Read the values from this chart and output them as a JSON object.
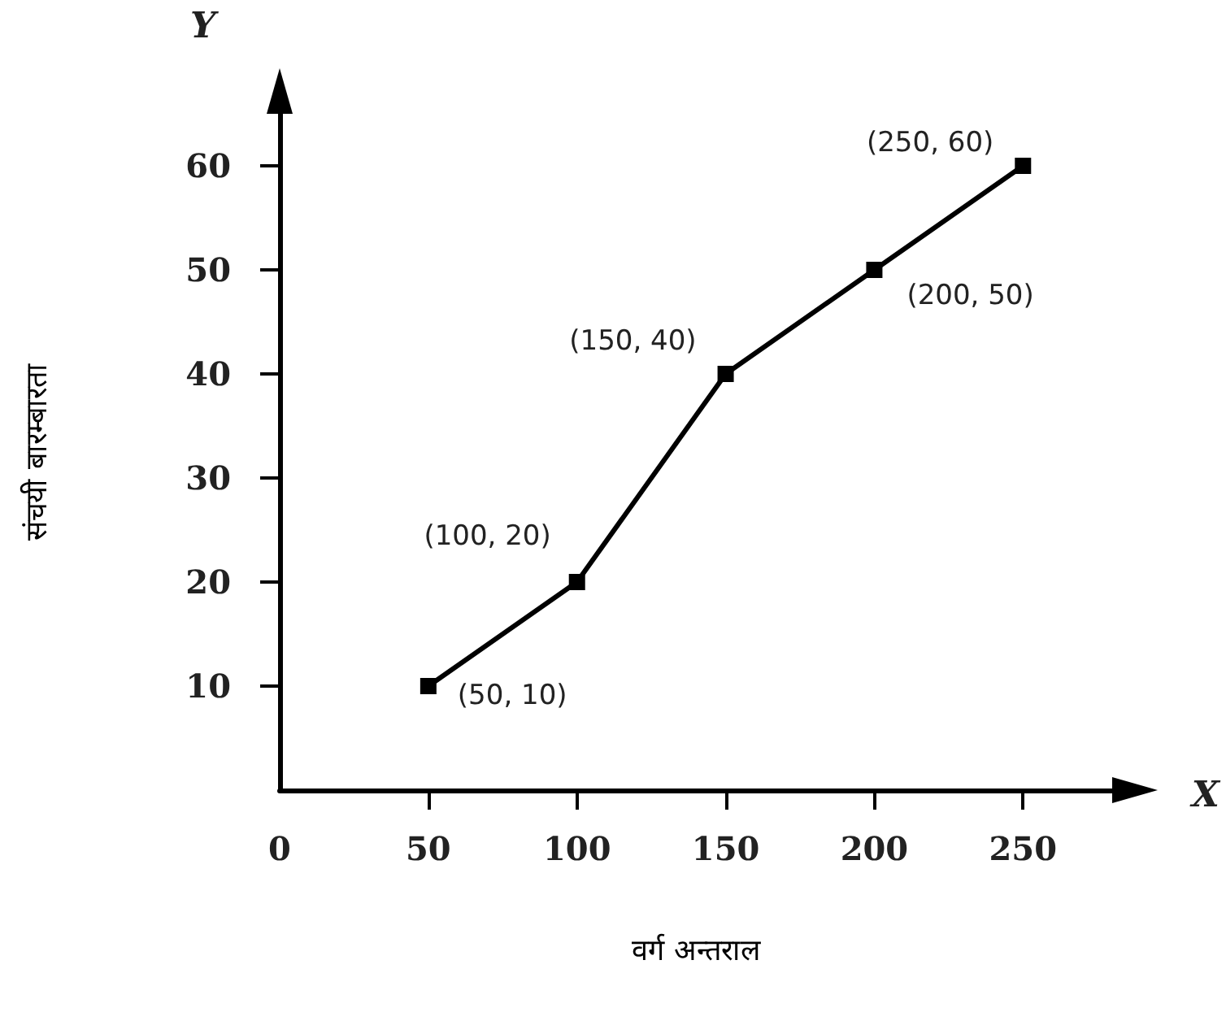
{
  "chart_data": {
    "type": "line",
    "xlabel": "वर्ग अन्तराल",
    "ylabel": "संचयी बारम्बारता",
    "annotations": [
      "Y",
      "X"
    ],
    "x": [
      50,
      100,
      150,
      200,
      250
    ],
    "series": [
      {
        "color": "#000000",
        "values": [
          10,
          20,
          40,
          50,
          60
        ],
        "value_labels": [
          "(50, 10)",
          "(100, 20)",
          "(150, 40)",
          "(200, 50)",
          "(250, 60)"
        ]
      }
    ],
    "xlim": [
      0,
      280
    ],
    "xticks": [
      0,
      50,
      100,
      150,
      200,
      250
    ],
    "ylim": [
      0,
      65
    ],
    "yticks": [
      10,
      20,
      30,
      40,
      50,
      60
    ],
    "grid": false,
    "marker": "square",
    "line_style": "solid"
  }
}
